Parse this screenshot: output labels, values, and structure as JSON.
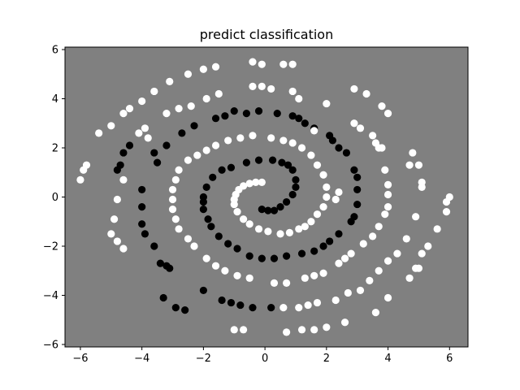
{
  "chart_data": {
    "type": "scatter",
    "title": "predict classification",
    "xlabel": "",
    "ylabel": "",
    "xlim": [
      -6.5,
      6.6
    ],
    "ylim": [
      -6.1,
      6.1
    ],
    "xticks": [
      -6,
      -4,
      -2,
      0,
      2,
      4,
      6
    ],
    "yticks": [
      -6,
      -4,
      -2,
      0,
      2,
      4,
      6
    ],
    "grid": false,
    "legend": "none",
    "background_color": "#808080",
    "series": [
      {
        "color": "#000000",
        "points": [
          [
            -0.1,
            -0.5
          ],
          [
            0.1,
            -0.55
          ],
          [
            0.3,
            -0.55
          ],
          [
            0.5,
            -0.4
          ],
          [
            0.7,
            -0.2
          ],
          [
            0.9,
            0.1
          ],
          [
            1.0,
            0.4
          ],
          [
            1.0,
            0.7
          ],
          [
            0.9,
            1.1
          ],
          [
            0.75,
            1.3
          ],
          [
            0.55,
            1.4
          ],
          [
            0.25,
            1.5
          ],
          [
            -0.2,
            1.5
          ],
          [
            -0.6,
            1.4
          ],
          [
            -1.1,
            1.2
          ],
          [
            -1.4,
            1.1
          ],
          [
            -1.7,
            0.8
          ],
          [
            -1.9,
            0.4
          ],
          [
            -2.0,
            0.0
          ],
          [
            -2.0,
            -0.2
          ],
          [
            -2.0,
            -0.5
          ],
          [
            -1.85,
            -0.9
          ],
          [
            -1.75,
            -1.2
          ],
          [
            -1.5,
            -1.6
          ],
          [
            -1.2,
            -1.9
          ],
          [
            -0.9,
            -2.1
          ],
          [
            -0.5,
            -2.4
          ],
          [
            -0.1,
            -2.5
          ],
          [
            0.3,
            -2.5
          ],
          [
            0.7,
            -2.4
          ],
          [
            1.2,
            -2.3
          ],
          [
            1.6,
            -2.2
          ],
          [
            1.9,
            -2.0
          ],
          [
            2.1,
            -1.8
          ],
          [
            2.4,
            -1.5
          ],
          [
            2.8,
            -1.0
          ],
          [
            2.9,
            -0.8
          ],
          [
            3.0,
            -0.3
          ],
          [
            3.0,
            0.3
          ],
          [
            3.0,
            0.8
          ],
          [
            2.9,
            1.1
          ],
          [
            2.65,
            1.8
          ],
          [
            2.4,
            2.0
          ],
          [
            2.2,
            2.3
          ],
          [
            2.1,
            2.5
          ],
          [
            1.6,
            2.8
          ],
          [
            1.3,
            3.0
          ],
          [
            1.1,
            3.2
          ],
          [
            0.9,
            3.3
          ],
          [
            0.4,
            3.4
          ],
          [
            -0.2,
            3.5
          ],
          [
            -0.6,
            3.4
          ],
          [
            -1.0,
            3.5
          ],
          [
            -1.3,
            3.3
          ],
          [
            -1.6,
            3.2
          ],
          [
            -2.3,
            2.9
          ],
          [
            -2.7,
            2.6
          ],
          [
            -3.2,
            2.1
          ],
          [
            -3.6,
            1.8
          ],
          [
            -3.5,
            1.4
          ],
          [
            -4.7,
            1.3
          ],
          [
            -4.8,
            1.1
          ],
          [
            -4.4,
            2.1
          ],
          [
            -4.6,
            1.8
          ],
          [
            -4.0,
            0.3
          ],
          [
            -4.0,
            -0.4
          ],
          [
            -4.0,
            -1.1
          ],
          [
            -3.9,
            -1.5
          ],
          [
            -3.6,
            -2.0
          ],
          [
            -3.4,
            -2.7
          ],
          [
            -3.1,
            -2.9
          ],
          [
            -3.2,
            -2.8
          ],
          [
            -2.0,
            -3.8
          ],
          [
            -1.4,
            -4.2
          ],
          [
            -1.1,
            -4.3
          ],
          [
            -0.8,
            -4.4
          ],
          [
            -0.4,
            -4.5
          ],
          [
            0.2,
            -4.5
          ],
          [
            -2.6,
            -4.6
          ],
          [
            -2.9,
            -4.5
          ],
          [
            -3.3,
            -4.1
          ]
        ]
      },
      {
        "color": "#ffffff",
        "points": [
          [
            -0.1,
            0.6
          ],
          [
            -0.3,
            0.6
          ],
          [
            -0.5,
            0.55
          ],
          [
            -0.7,
            0.45
          ],
          [
            -0.85,
            0.3
          ],
          [
            -0.95,
            0.1
          ],
          [
            -1.0,
            -0.1
          ],
          [
            -1.0,
            -0.3
          ],
          [
            -0.9,
            -0.6
          ],
          [
            -0.7,
            -0.9
          ],
          [
            -0.5,
            -1.1
          ],
          [
            -0.2,
            -1.3
          ],
          [
            0.1,
            -1.4
          ],
          [
            0.5,
            -1.5
          ],
          [
            0.8,
            -1.45
          ],
          [
            1.1,
            -1.3
          ],
          [
            1.3,
            -1.2
          ],
          [
            1.5,
            -1.0
          ],
          [
            1.7,
            -0.7
          ],
          [
            1.9,
            -0.4
          ],
          [
            2.0,
            0.0
          ],
          [
            2.0,
            0.4
          ],
          [
            1.9,
            0.9
          ],
          [
            1.7,
            1.3
          ],
          [
            1.5,
            1.7
          ],
          [
            1.2,
            2.0
          ],
          [
            0.9,
            2.2
          ],
          [
            0.6,
            2.3
          ],
          [
            0.2,
            2.4
          ],
          [
            -0.4,
            2.5
          ],
          [
            -0.8,
            2.4
          ],
          [
            -1.2,
            2.3
          ],
          [
            -1.6,
            2.1
          ],
          [
            -1.9,
            1.9
          ],
          [
            -2.2,
            1.7
          ],
          [
            -2.5,
            1.5
          ],
          [
            -2.8,
            1.1
          ],
          [
            -2.9,
            0.7
          ],
          [
            -3.0,
            0.3
          ],
          [
            -3.0,
            -0.1
          ],
          [
            -3.0,
            -0.5
          ],
          [
            -2.9,
            -0.9
          ],
          [
            -2.8,
            -1.3
          ],
          [
            -2.5,
            -1.7
          ],
          [
            -2.3,
            -2.0
          ],
          [
            -1.9,
            -2.5
          ],
          [
            -1.6,
            -2.8
          ],
          [
            -1.3,
            -3.0
          ],
          [
            -0.9,
            -3.2
          ],
          [
            -0.5,
            -3.3
          ],
          [
            0.3,
            -3.5
          ],
          [
            0.7,
            -3.5
          ],
          [
            1.3,
            -3.3
          ],
          [
            1.6,
            -3.2
          ],
          [
            1.9,
            -3.1
          ],
          [
            2.4,
            -2.7
          ],
          [
            2.6,
            -2.5
          ],
          [
            2.8,
            -2.3
          ],
          [
            3.2,
            -1.9
          ],
          [
            3.5,
            -1.6
          ],
          [
            3.7,
            -1.2
          ],
          [
            3.9,
            -0.7
          ],
          [
            4.0,
            -0.4
          ],
          [
            4.0,
            0.1
          ],
          [
            4.0,
            0.5
          ],
          [
            3.9,
            1.1
          ],
          [
            3.6,
            2.2
          ],
          [
            3.5,
            2.5
          ],
          [
            3.1,
            2.8
          ],
          [
            2.9,
            3.0
          ],
          [
            1.6,
            2.7
          ],
          [
            2.0,
            3.8
          ],
          [
            1.1,
            4.0
          ],
          [
            0.9,
            4.3
          ],
          [
            0.2,
            4.4
          ],
          [
            -0.1,
            4.5
          ],
          [
            -0.4,
            4.5
          ],
          [
            -1.5,
            4.2
          ],
          [
            -1.9,
            4.0
          ],
          [
            -2.4,
            3.7
          ],
          [
            -2.8,
            3.6
          ],
          [
            -3.2,
            3.4
          ],
          [
            -3.9,
            2.8
          ],
          [
            -4.1,
            2.6
          ],
          [
            -4.6,
            0.7
          ],
          [
            -4.8,
            -0.1
          ],
          [
            -4.9,
            -0.9
          ],
          [
            -5.0,
            -1.5
          ],
          [
            -4.8,
            -1.8
          ],
          [
            -4.6,
            -2.1
          ],
          [
            -3.8,
            2.4
          ],
          [
            -4.0,
            3.9
          ],
          [
            -4.4,
            3.6
          ],
          [
            -4.6,
            3.4
          ],
          [
            -5.0,
            2.9
          ],
          [
            -5.4,
            2.6
          ],
          [
            -3.6,
            4.3
          ],
          [
            -3.1,
            4.7
          ],
          [
            -2.5,
            5.0
          ],
          [
            -2.0,
            5.2
          ],
          [
            -1.6,
            5.3
          ],
          [
            -0.4,
            5.5
          ],
          [
            -0.1,
            5.4
          ],
          [
            0.6,
            5.4
          ],
          [
            0.9,
            5.4
          ],
          [
            -5.8,
            1.3
          ],
          [
            -5.9,
            1.1
          ],
          [
            -6.0,
            0.7
          ],
          [
            2.9,
            4.4
          ],
          [
            3.3,
            4.2
          ],
          [
            3.8,
            3.7
          ],
          [
            4.0,
            3.4
          ],
          [
            4.8,
            1.8
          ],
          [
            5.0,
            1.3
          ],
          [
            5.1,
            0.6
          ],
          [
            5.1,
            0.4
          ],
          [
            6.0,
            0.0
          ],
          [
            5.9,
            -0.2
          ],
          [
            5.9,
            -0.6
          ],
          [
            5.6,
            -1.3
          ],
          [
            5.3,
            -2.0
          ],
          [
            5.1,
            -2.3
          ],
          [
            4.9,
            -2.9
          ],
          [
            4.7,
            -3.3
          ],
          [
            4.3,
            -2.3
          ],
          [
            4.0,
            -2.6
          ],
          [
            3.7,
            -3.0
          ],
          [
            3.4,
            -3.4
          ],
          [
            3.1,
            -3.8
          ],
          [
            2.7,
            -3.9
          ],
          [
            2.3,
            -4.2
          ],
          [
            1.7,
            -4.3
          ],
          [
            1.4,
            -4.4
          ],
          [
            1.1,
            -4.5
          ],
          [
            0.6,
            -4.5
          ],
          [
            3.6,
            -4.7
          ],
          [
            2.6,
            -5.1
          ],
          [
            2.0,
            -5.3
          ],
          [
            1.6,
            -5.4
          ],
          [
            1.2,
            -5.4
          ],
          [
            0.7,
            -5.5
          ],
          [
            -0.7,
            -5.4
          ],
          [
            -1.0,
            -5.4
          ],
          [
            4.0,
            -4.1
          ],
          [
            5.0,
            -2.9
          ],
          [
            4.6,
            -1.7
          ],
          [
            4.9,
            -0.8
          ],
          [
            4.7,
            1.3
          ],
          [
            3.8,
            2.0
          ],
          [
            3.7,
            2.0
          ],
          [
            2.3,
            -0.1
          ],
          [
            2.4,
            0.2
          ]
        ]
      }
    ]
  }
}
